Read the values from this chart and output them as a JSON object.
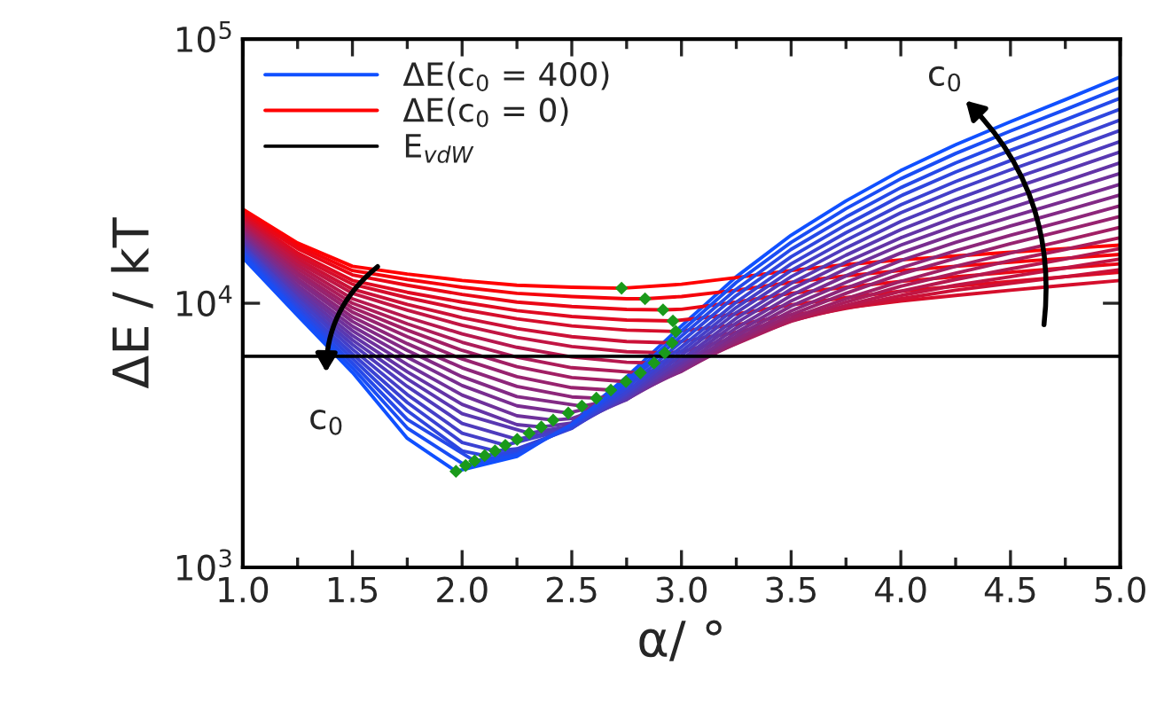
{
  "chart_data": {
    "type": "line",
    "log": "y",
    "xlabel": "α/ °",
    "ylabel": "ΔE / kT",
    "legend": "top left",
    "xlim": [
      1.0,
      5.0
    ],
    "xticks": [
      {
        "value": 1.0,
        "label": "1.0"
      },
      1.5,
      {
        "value": 2.0,
        "label": "2.0"
      },
      2.5,
      {
        "value": 3.0,
        "label": "3.0"
      },
      3.5,
      {
        "value": 4.0,
        "label": "4.0"
      },
      4.5,
      {
        "value": 5.0,
        "label": "5.0"
      }
    ],
    "ylim": [
      1000,
      100000
    ],
    "yticks": [
      {
        "value": 1000,
        "label": "10$^{3}$"
      },
      {
        "value": 10000,
        "label": "10$^{4}$"
      },
      {
        "value": 100000,
        "label": "10$^{5}$"
      }
    ],
    "ref_lines": [
      {
        "axis": "y",
        "value": 6300,
        "label": "E$_{vdW}$",
        "color": "#000000"
      }
    ],
    "annotations": [
      "c$_{0}$",
      "c$_{0}$"
    ],
    "series": [
      {
        "name": "ΔE(c$_{0}$ = 400)",
        "color": "#1050ff",
        "x": [
          1,
          1.25,
          1.5,
          1.75,
          1.972,
          2.25,
          2.5,
          2.75,
          3,
          3.25,
          3.5,
          3.75,
          4,
          4.25,
          4.5,
          4.75,
          5
        ],
        "values": [
          14900,
          8980,
          5470,
          3080,
          2310,
          2630,
          3530,
          5260,
          8210,
          12600,
          18100,
          24400,
          31800,
          39800,
          48700,
          59000,
          71900
        ]
      },
      {
        "name": "ΔE(c$_{0}$ = 0)",
        "color": "#ff0000",
        "x": [
          1,
          1.25,
          1.5,
          1.75,
          2,
          2.25,
          2.5,
          2.727,
          3,
          3.25,
          3.5,
          3.75,
          4,
          4.25,
          4.5,
          4.75,
          5
        ],
        "values": [
          22700,
          16900,
          13800,
          12900,
          12200,
          11700,
          11500,
          11400,
          11800,
          12500,
          13300,
          14000,
          14600,
          15100,
          15600,
          16100,
          16600
        ]
      },
      {
        "color": "#f5030b",
        "x": [
          1,
          1.25,
          1.5,
          1.75,
          2,
          2.25,
          2.5,
          2.75,
          2.834,
          3,
          3.25,
          3.5,
          3.75,
          4,
          4.25,
          4.5,
          4.75,
          5
        ],
        "values": [
          22300,
          16500,
          13300,
          12300,
          11500,
          10900,
          10600,
          10400,
          10400,
          10600,
          11200,
          12000,
          12700,
          13300,
          13800,
          14300,
          14800,
          15300
        ]
      },
      {
        "color": "#ea0716",
        "x": [
          1,
          1.25,
          1.5,
          1.75,
          2,
          2.25,
          2.5,
          2.75,
          2.916,
          3,
          3.25,
          3.5,
          3.75,
          4,
          4.25,
          4.5,
          4.75,
          5
        ],
        "values": [
          21900,
          16100,
          12800,
          11700,
          10800,
          10100,
          9720,
          9480,
          9440,
          9490,
          10100,
          10900,
          11500,
          12100,
          12600,
          13100,
          13600,
          14100
        ]
      },
      {
        "color": "#e00a21",
        "x": [
          1,
          1.25,
          1.5,
          1.75,
          2,
          2.25,
          2.5,
          2.75,
          2.961,
          3.25,
          3.5,
          3.75,
          4,
          4.25,
          4.5,
          4.75,
          5
        ],
        "values": [
          21500,
          15500,
          12200,
          11000,
          10100,
          9380,
          8910,
          8640,
          8570,
          9100,
          9860,
          10500,
          11100,
          11600,
          12100,
          12600,
          13100
        ]
      },
      {
        "color": "#d50e2c",
        "x": [
          1,
          1.25,
          1.5,
          1.75,
          2,
          2.25,
          2.5,
          2.75,
          2.974,
          3.25,
          3.5,
          3.75,
          4,
          4.25,
          4.5,
          4.75,
          5
        ],
        "values": [
          21100,
          15100,
          11800,
          10500,
          9480,
          8730,
          8210,
          7910,
          7820,
          8290,
          9020,
          9620,
          10200,
          10700,
          11200,
          11700,
          12200
        ]
      },
      {
        "color": "#cb1137",
        "x": [
          1,
          1.25,
          1.5,
          1.75,
          2,
          2.25,
          2.5,
          2.75,
          2.957,
          3.25,
          3.5,
          3.75,
          4,
          4.25,
          4.5,
          4.75,
          5
        ],
        "values": [
          20700,
          14700,
          11300,
          9900,
          8820,
          8020,
          7470,
          7160,
          7080,
          7750,
          8730,
          9570,
          10400,
          11200,
          11900,
          12600,
          13400
        ]
      },
      {
        "color": "#c11543",
        "x": [
          1,
          1.25,
          1.5,
          1.75,
          2,
          2.25,
          2.5,
          2.75,
          2.924,
          3,
          3.25,
          3.5,
          3.75,
          4,
          4.25,
          4.5,
          4.75,
          5
        ],
        "values": [
          20400,
          14300,
          10900,
          9410,
          8260,
          7420,
          6860,
          6550,
          6490,
          6550,
          7400,
          8590,
          9640,
          10700,
          11700,
          12600,
          13600,
          14700
        ]
      },
      {
        "color": "#b6184e",
        "x": [
          1,
          1.25,
          1.5,
          1.75,
          2,
          2.25,
          2.5,
          2.75,
          2.875,
          3,
          3.25,
          3.5,
          3.75,
          4,
          4.25,
          4.5,
          4.75,
          5
        ],
        "values": [
          20000,
          13900,
          10400,
          8840,
          7660,
          6810,
          6260,
          5980,
          5940,
          6100,
          7160,
          8550,
          9810,
          11100,
          12300,
          13500,
          14700,
          16100
        ]
      },
      {
        "color": "#ac1c59",
        "x": [
          1,
          1.25,
          1.5,
          1.75,
          2,
          2.25,
          2.5,
          2.813,
          3,
          3.25,
          3.5,
          3.75,
          4,
          4.25,
          4.5,
          4.75,
          5
        ],
        "values": [
          19600,
          13500,
          10000,
          8360,
          7120,
          6250,
          5700,
          5450,
          5780,
          7030,
          8590,
          10100,
          11600,
          13000,
          14500,
          16000,
          17700
        ]
      },
      {
        "color": "#a11f64",
        "x": [
          1,
          1.25,
          1.5,
          1.75,
          2,
          2.25,
          2.5,
          2.747,
          3,
          3.25,
          3.5,
          3.75,
          4,
          4.25,
          4.5,
          4.75,
          5
        ],
        "values": [
          19300,
          13100,
          9620,
          7910,
          6630,
          5750,
          5230,
          5050,
          5620,
          7050,
          8770,
          10400,
          12100,
          13800,
          15500,
          17300,
          19400
        ]
      },
      {
        "color": "#97236f",
        "x": [
          1,
          1.25,
          1.5,
          1.75,
          2,
          2.25,
          2.5,
          2.678,
          2.75,
          3,
          3.25,
          3.5,
          3.75,
          4,
          4.25,
          4.5,
          4.75,
          5
        ],
        "values": [
          18900,
          12800,
          9250,
          7470,
          6150,
          5270,
          4790,
          4690,
          4740,
          5540,
          7140,
          9040,
          10900,
          12900,
          14800,
          16800,
          18900,
          21300
        ]
      },
      {
        "color": "#8d267a",
        "x": [
          1,
          1.25,
          1.5,
          1.75,
          2,
          2.25,
          2.5,
          2.612,
          2.75,
          3,
          3.25,
          3.5,
          3.75,
          4,
          4.25,
          4.5,
          4.75,
          5
        ],
        "values": [
          18600,
          12400,
          8870,
          7030,
          5700,
          4840,
          4420,
          4370,
          4530,
          5520,
          7290,
          9350,
          11400,
          13600,
          15800,
          18100,
          20500,
          23400
        ]
      },
      {
        "color": "#822a85",
        "x": [
          1,
          1.25,
          1.5,
          1.75,
          2,
          2.25,
          2.546,
          2.75,
          3,
          3.25,
          3.5,
          3.75,
          4,
          4.25,
          4.5,
          4.75,
          5
        ],
        "values": [
          18200,
          12100,
          8530,
          6630,
          5270,
          4430,
          4080,
          4390,
          5560,
          7500,
          9750,
          12000,
          14500,
          17000,
          19600,
          22400,
          25700
        ]
      },
      {
        "color": "#782d90",
        "x": [
          1,
          1.25,
          1.5,
          1.75,
          2,
          2.25,
          2.484,
          2.75,
          3,
          3.25,
          3.5,
          3.75,
          4,
          4.25,
          4.5,
          4.75,
          5
        ],
        "values": [
          17900,
          11700,
          8180,
          6240,
          4880,
          4090,
          3840,
          4330,
          5650,
          7750,
          10200,
          12700,
          15500,
          18300,
          21200,
          24400,
          28200
        ]
      },
      {
        "color": "#6e319b",
        "x": [
          1,
          1.25,
          1.5,
          1.75,
          2,
          2.25,
          2.415,
          2.5,
          2.75,
          3,
          3.25,
          3.5,
          3.75,
          4,
          4.25,
          4.5,
          4.75,
          5
        ],
        "values": [
          17600,
          11400,
          7870,
          5860,
          4490,
          3750,
          3610,
          3660,
          4320,
          5790,
          8060,
          10700,
          13500,
          16600,
          19700,
          23000,
          26700,
          31000
        ]
      },
      {
        "color": "#6334a6",
        "x": [
          1,
          1.25,
          1.5,
          1.75,
          2,
          2.25,
          2.361,
          2.5,
          2.75,
          3,
          3.25,
          3.5,
          3.75,
          4,
          4.25,
          4.5,
          4.75,
          5
        ],
        "values": [
          17300,
          11100,
          7550,
          5500,
          4140,
          3470,
          3400,
          3520,
          4320,
          5950,
          8420,
          11300,
          14300,
          17700,
          21200,
          24900,
          29000,
          34000
        ]
      },
      {
        "color": "#5938b1",
        "x": [
          1,
          1.25,
          1.5,
          1.75,
          2,
          2.306,
          2.5,
          2.75,
          3,
          3.25,
          3.5,
          3.75,
          4,
          4.25,
          4.5,
          4.75,
          5
        ],
        "values": [
          16900,
          10800,
          7260,
          5170,
          3820,
          3220,
          3440,
          4370,
          6120,
          8780,
          11900,
          15200,
          19000,
          22900,
          27100,
          31800,
          37400
        ]
      },
      {
        "color": "#4e3bbc",
        "x": [
          1,
          1.25,
          1.5,
          1.75,
          2,
          2.251,
          2.5,
          2.75,
          3,
          3.25,
          3.5,
          3.75,
          4,
          4.25,
          4.5,
          4.75,
          5
        ],
        "values": [
          16600,
          10500,
          6980,
          4840,
          3510,
          3050,
          3390,
          4440,
          6350,
          9220,
          12600,
          16200,
          20400,
          24700,
          29400,
          34600,
          41000
        ]
      },
      {
        "color": "#443fc8",
        "x": [
          1,
          1.25,
          1.5,
          1.75,
          2,
          2.197,
          2.5,
          2.75,
          3,
          3.25,
          3.5,
          3.75,
          4,
          4.25,
          4.5,
          4.75,
          5
        ],
        "values": [
          16400,
          10300,
          6700,
          4510,
          3220,
          2900,
          3370,
          4530,
          6580,
          9640,
          13300,
          17300,
          22000,
          26800,
          32000,
          37900,
          45100
        ]
      },
      {
        "color": "#3a42d3",
        "x": [
          1,
          1.25,
          1.5,
          1.75,
          2,
          2.15,
          2.25,
          2.5,
          2.75,
          3,
          3.25,
          3.5,
          3.75,
          4,
          4.25,
          4.5,
          4.75,
          5
        ],
        "values": [
          16100,
          9980,
          6430,
          4210,
          2970,
          2760,
          2810,
          3360,
          4630,
          6840,
          10100,
          14100,
          18500,
          23600,
          28900,
          34700,
          41300,
          49400
        ]
      },
      {
        "color": "#2f46de",
        "x": [
          1,
          1.25,
          1.5,
          1.75,
          2,
          2.103,
          2.25,
          2.5,
          2.75,
          3,
          3.25,
          3.5,
          3.75,
          4,
          4.25,
          4.5,
          4.75,
          5
        ],
        "values": [
          15800,
          9720,
          6180,
          3920,
          2760,
          2650,
          2750,
          3400,
          4780,
          7160,
          10700,
          15000,
          19800,
          25500,
          31400,
          37900,
          45300,
          54300
        ]
      },
      {
        "color": "#2549e9",
        "x": [
          1,
          1.25,
          1.5,
          1.75,
          2.057,
          2.25,
          2.5,
          2.75,
          3,
          3.25,
          3.5,
          3.75,
          4,
          4.25,
          4.5,
          4.75,
          5
        ],
        "values": [
          15500,
          9460,
          5930,
          3630,
          2530,
          2700,
          3440,
          4940,
          7510,
          11300,
          16000,
          21200,
          27400,
          34000,
          41200,
          49500,
          59700
        ]
      },
      {
        "color": "#1a4df4",
        "x": [
          1,
          1.25,
          1.5,
          1.75,
          2.016,
          2.25,
          2.5,
          2.75,
          3,
          3.25,
          3.5,
          3.75,
          4,
          4.25,
          4.5,
          4.75,
          5
        ],
        "values": [
          15200,
          9210,
          5700,
          3370,
          2430,
          2670,
          3480,
          5090,
          7840,
          12000,
          17000,
          22800,
          29600,
          36900,
          44900,
          54100,
          65500
        ]
      },
      {
        "type": "scatter",
        "marker": "diamond",
        "color": "#1a9a1a",
        "x": [
          1.972,
          2.016,
          2.057,
          2.103,
          2.15,
          2.197,
          2.251,
          2.306,
          2.361,
          2.415,
          2.484,
          2.546,
          2.612,
          2.678,
          2.747,
          2.813,
          2.875,
          2.924,
          2.957,
          2.974,
          2.961,
          2.916,
          2.834,
          2.727
        ],
        "values": [
          2310,
          2430,
          2530,
          2650,
          2760,
          2900,
          3050,
          3220,
          3400,
          3610,
          3840,
          4080,
          4370,
          4690,
          5050,
          5450,
          5940,
          6490,
          7080,
          7820,
          8570,
          9440,
          10400,
          11400
        ]
      }
    ]
  }
}
